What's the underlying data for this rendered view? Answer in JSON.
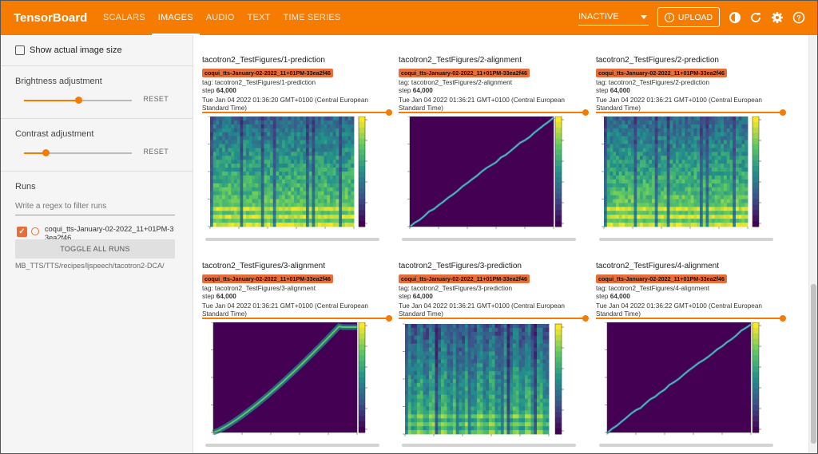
{
  "app": {
    "title": "TensorBoard",
    "tabs": [
      {
        "label": "SCALARS",
        "active": false
      },
      {
        "label": "IMAGES",
        "active": true
      },
      {
        "label": "AUDIO",
        "active": false
      },
      {
        "label": "TEXT",
        "active": false
      },
      {
        "label": "TIME SERIES",
        "active": false
      }
    ],
    "run_select_value": "INACTIVE",
    "upload_label": "UPLOAD",
    "accent_color": "#f57c00",
    "run_chip_color": "#e76d3a",
    "icons": [
      "info-icon",
      "brightness-icon",
      "refresh-icon",
      "settings-icon",
      "help-icon"
    ]
  },
  "sidebar": {
    "show_actual_size_label": "Show actual image size",
    "show_actual_size_checked": false,
    "brightness": {
      "label": "Brightness adjustment",
      "reset_label": "RESET",
      "value": 0.5
    },
    "contrast": {
      "label": "Contrast adjustment",
      "reset_label": "RESET",
      "value": 0.2
    },
    "runs": {
      "label": "Runs",
      "filter_placeholder": "Write a regex to filter runs",
      "filter_value": "",
      "items": [
        {
          "name": "coqui_tts-January-02-2022_11+01PM-33ea2f46",
          "checked": true
        }
      ],
      "toggle_label": "TOGGLE ALL RUNS",
      "logdir": "MB_TTS/TTS/recipes/ljspeech/tacotron2-DCA/"
    }
  },
  "cards": [
    {
      "title": "tacotron2_TestFigures/1-prediction",
      "run": "coqui_tts-January-02-2022_11+01PM-33ea2f46",
      "tag": "tag: tacotron2_TestFigures/1-prediction",
      "step_label": "step",
      "step": "64,000",
      "time": "Tue Jan 04 2022 01:36:20 GMT+0100 (Central European Standard Time)",
      "kind": "prediction"
    },
    {
      "title": "tacotron2_TestFigures/2-alignment",
      "run": "coqui_tts-January-02-2022_11+01PM-33ea2f46",
      "tag": "tag: tacotron2_TestFigures/2-alignment",
      "step_label": "step",
      "step": "64,000",
      "time": "Tue Jan 04 2022 01:36:21 GMT+0100 (Central European Standard Time)",
      "kind": "alignment"
    },
    {
      "title": "tacotron2_TestFigures/2-prediction",
      "run": "coqui_tts-January-02-2022_11+01PM-33ea2f46",
      "tag": "tag: tacotron2_TestFigures/2-prediction",
      "step_label": "step",
      "step": "64,000",
      "time": "Tue Jan 04 2022 01:36:21 GMT+0100 (Central European Standard Time)",
      "kind": "prediction"
    },
    {
      "title": "tacotron2_TestFigures/3-alignment",
      "run": "coqui_tts-January-02-2022_11+01PM-33ea2f46",
      "tag": "tag: tacotron2_TestFigures/3-alignment",
      "step_label": "step",
      "step": "64,000",
      "time": "Tue Jan 04 2022 01:36:21 GMT+0100 (Central European Standard Time)",
      "kind": "alignment-curve"
    },
    {
      "title": "tacotron2_TestFigures/3-prediction",
      "run": "coqui_tts-January-02-2022_11+01PM-33ea2f46",
      "tag": "tag: tacotron2_TestFigures/3-prediction",
      "step_label": "step",
      "step": "64,000",
      "time": "Tue Jan 04 2022 01:36:21 GMT+0100 (Central European Standard Time)",
      "kind": "prediction-tall"
    },
    {
      "title": "tacotron2_TestFigures/4-alignment",
      "run": "coqui_tts-January-02-2022_11+01PM-33ea2f46",
      "tag": "tag: tacotron2_TestFigures/4-alignment",
      "step_label": "step",
      "step": "64,000",
      "time": "Tue Jan 04 2022 01:36:22 GMT+0100 (Central European Standard Time)",
      "kind": "alignment"
    }
  ]
}
